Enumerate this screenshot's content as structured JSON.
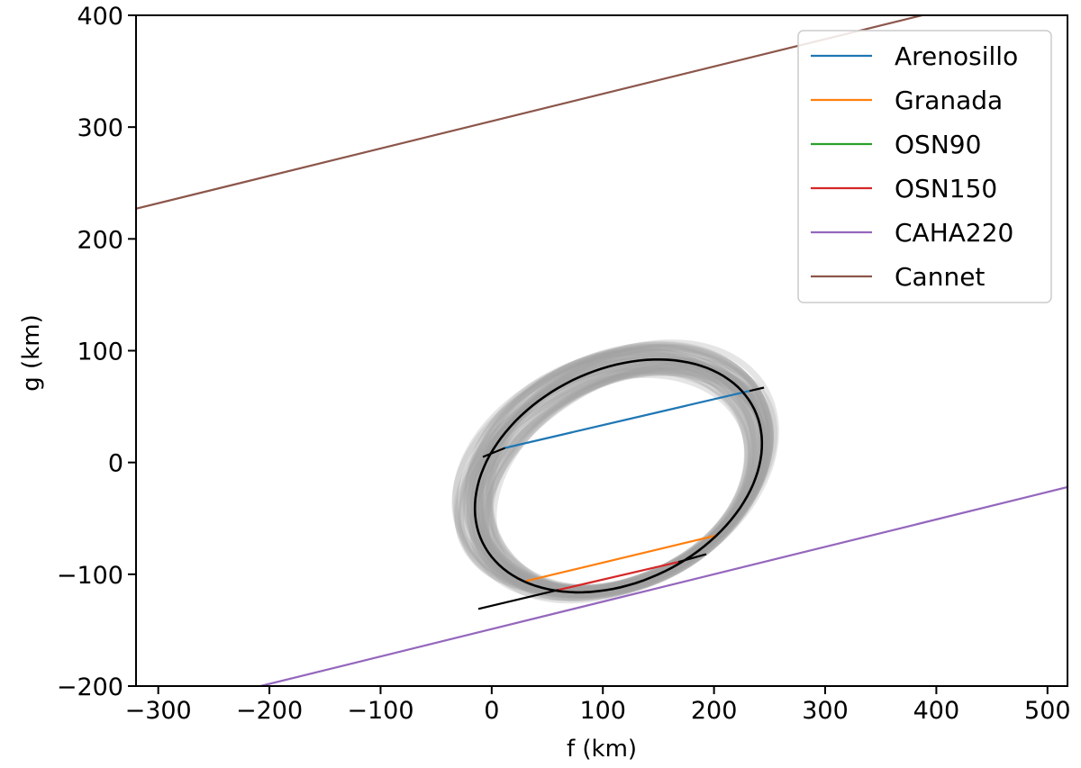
{
  "chart_data": {
    "type": "line",
    "title": "",
    "xlabel": "f (km)",
    "ylabel": "g (km)",
    "xlim": [
      -320,
      518
    ],
    "ylim": [
      -200,
      400
    ],
    "xticks": [
      -300,
      -200,
      -100,
      0,
      100,
      200,
      300,
      400,
      500
    ],
    "yticks": [
      -200,
      -100,
      0,
      100,
      200,
      300,
      400
    ],
    "xtick_labels": [
      "−300",
      "−200",
      "−100",
      "0",
      "100",
      "200",
      "300",
      "400",
      "500"
    ],
    "ytick_labels": [
      "−200",
      "−100",
      "0",
      "100",
      "200",
      "300",
      "400"
    ],
    "grid": false,
    "legend_position": "top-right",
    "series": [
      {
        "name": "Arenosillo",
        "color": "#1f77b4",
        "x": [
          12,
          232
        ],
        "y": [
          13,
          64
        ]
      },
      {
        "name": "Granada",
        "color": "#ff7f0e",
        "x": [
          31,
          203
        ],
        "y": [
          -106,
          -65
        ]
      },
      {
        "name": "OSN90",
        "color": "#2ca02c",
        "x": [],
        "y": []
      },
      {
        "name": "OSN150",
        "color": "#d62728",
        "x": [
          60,
          168
        ],
        "y": [
          -114,
          -89
        ]
      },
      {
        "name": "CAHA220",
        "color": "#9467bd",
        "x": [
          -208,
          518
        ],
        "y": [
          -200,
          -22
        ]
      },
      {
        "name": "Cannet",
        "color": "#8c564b",
        "x": [
          -320,
          387
        ],
        "y": [
          227,
          400
        ]
      }
    ],
    "fit_ellipse": {
      "color": "#000000",
      "center": [
        114,
        -12
      ],
      "semi_major": 136,
      "semi_minor": 95,
      "rotation_deg": 26
    },
    "uncertainty_band": {
      "color": "#a0a0a0",
      "count": 40
    },
    "black_segments": [
      {
        "x": [
          -8,
          12
        ],
        "y": [
          5,
          13
        ]
      },
      {
        "x": [
          232,
          245
        ],
        "y": [
          64,
          67
        ]
      },
      {
        "x": [
          -12,
          60
        ],
        "y": [
          -131,
          -114
        ]
      },
      {
        "x": [
          168,
          193
        ],
        "y": [
          -89,
          -82
        ]
      }
    ]
  }
}
